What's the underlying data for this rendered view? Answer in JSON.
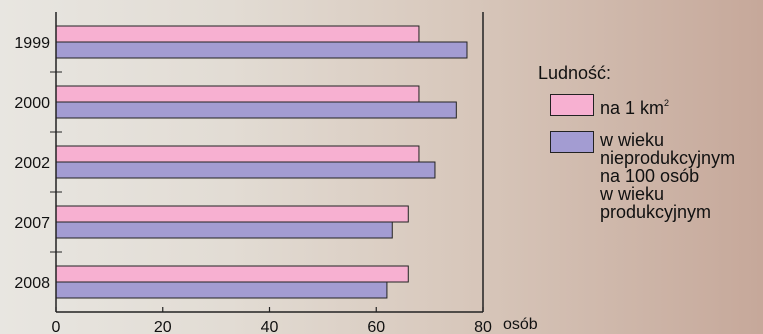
{
  "chart_data": {
    "type": "bar",
    "orientation": "horizontal",
    "categories": [
      "1999",
      "2000",
      "2002",
      "2007",
      "2008"
    ],
    "series": [
      {
        "name": "na 1 km²",
        "values": [
          68,
          68,
          68,
          66,
          66
        ]
      },
      {
        "name": "w wieku nieprodukcyjnym na 100 osób w wieku produkcyjnym",
        "values": [
          77,
          75,
          71,
          63,
          62
        ]
      }
    ],
    "xlim": [
      0,
      80
    ],
    "x_ticks": [
      "0",
      "20",
      "40",
      "60",
      "80"
    ],
    "x_unit": "osób",
    "legend_title": "Ludność:",
    "legend_labels": {
      "area_main": "na 1 km",
      "area_sup": "2",
      "age_lines": [
        "w wieku",
        "nieprodukcyjnym",
        "na 100 osób",
        "w wieku",
        "produkcyjnym"
      ]
    },
    "colors": {
      "area": "#f7b0d1",
      "age": "#a39cd2",
      "axis": "#222222"
    },
    "legend_position": "right"
  }
}
